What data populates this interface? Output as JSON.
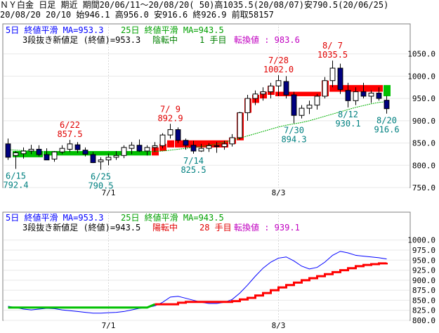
{
  "header": {
    "line1": "ＮＹ白金 日足 期近 期間20/06/11～20/08/20( 50)高1035.5(20/08/07)安790.5(20/06/25)",
    "line2": "20/08/20 20/10 始946.1 高956.0 安916.6 終926.9 前取58157"
  },
  "upper": {
    "legend_ma5": "5日 終値平滑 MA=953.3",
    "legend_ma25": "25日 終値平滑 MA=943.5",
    "legend_kagi": "3段抜き新値足 (終値)=953.3",
    "legend_state": "陰転中",
    "legend_count": "1 手目",
    "legend_switch": "転換値 : 983.6",
    "yticks": [
      "1050.0",
      "1000.0",
      "950.0",
      "900.0",
      "850.0",
      "800.0",
      "750.0"
    ],
    "xticks": [
      "7/1",
      "8/3"
    ],
    "annotations": [
      {
        "date": "6/22",
        "value": "857.5",
        "color": "#e00000"
      },
      {
        "date": "7/ 9",
        "value": "892.9",
        "color": "#e00000"
      },
      {
        "date": "7/28",
        "value": "1002.0",
        "color": "#e00000"
      },
      {
        "date": "8/ 7",
        "value": "1035.5",
        "color": "#e00000"
      },
      {
        "date": "6/15",
        "value": "792.4",
        "color": "#008080"
      },
      {
        "date": "6/25",
        "value": "790.5",
        "color": "#008080"
      },
      {
        "date": "7/14",
        "value": "825.5",
        "color": "#008080"
      },
      {
        "date": "7/30",
        "value": "894.3",
        "color": "#008080"
      },
      {
        "date": "8/12",
        "value": "930.1",
        "color": "#008080"
      },
      {
        "date": "8/20",
        "value": "916.6",
        "color": "#008080"
      }
    ]
  },
  "lower": {
    "legend_ma5": "5日 終値平滑 MA=953.3",
    "legend_ma25": "25日 終値平滑 MA=943.5",
    "legend_kagi": "3段抜き新値足 (終値)=943.5",
    "legend_state": "陽転中",
    "legend_count": "28 手目",
    "legend_switch": "転換値 : 939.1",
    "yticks": [
      "1000.0",
      "975.0",
      "950.0",
      "925.0",
      "900.0",
      "875.0",
      "850.0",
      "825.0",
      "800.0"
    ],
    "xticks": [
      "7/1",
      "8/3"
    ]
  },
  "colors": {
    "up_candle": "#000080",
    "red_block": "#ff0000",
    "green_block": "#00c000",
    "ma5": "#0000ff",
    "ma25": "#00b000",
    "annot_high": "#e00000",
    "annot_low": "#008080"
  },
  "chart_data": [
    {
      "type": "candlestick",
      "title": "ＮＹ白金 日足",
      "ylim": [
        750,
        1070
      ],
      "candles": [
        {
          "o": 848,
          "h": 860,
          "l": 812,
          "c": 818
        },
        {
          "o": 822,
          "h": 832,
          "l": 792,
          "c": 828
        },
        {
          "o": 826,
          "h": 840,
          "l": 815,
          "c": 832
        },
        {
          "o": 832,
          "h": 846,
          "l": 825,
          "c": 836
        },
        {
          "o": 836,
          "h": 845,
          "l": 820,
          "c": 824
        },
        {
          "o": 824,
          "h": 838,
          "l": 812,
          "c": 812
        },
        {
          "o": 814,
          "h": 832,
          "l": 808,
          "c": 830
        },
        {
          "o": 830,
          "h": 845,
          "l": 825,
          "c": 838
        },
        {
          "o": 836,
          "h": 857,
          "l": 830,
          "c": 848
        },
        {
          "o": 846,
          "h": 852,
          "l": 828,
          "c": 835
        },
        {
          "o": 834,
          "h": 840,
          "l": 820,
          "c": 825
        },
        {
          "o": 824,
          "h": 830,
          "l": 805,
          "c": 806
        },
        {
          "o": 808,
          "h": 818,
          "l": 790,
          "c": 812
        },
        {
          "o": 812,
          "h": 826,
          "l": 800,
          "c": 818
        },
        {
          "o": 818,
          "h": 832,
          "l": 812,
          "c": 822
        },
        {
          "o": 822,
          "h": 845,
          "l": 816,
          "c": 840
        },
        {
          "o": 838,
          "h": 852,
          "l": 825,
          "c": 845
        },
        {
          "o": 845,
          "h": 858,
          "l": 830,
          "c": 832
        },
        {
          "o": 832,
          "h": 845,
          "l": 822,
          "c": 840
        },
        {
          "o": 840,
          "h": 852,
          "l": 830,
          "c": 844
        },
        {
          "o": 844,
          "h": 872,
          "l": 838,
          "c": 868
        },
        {
          "o": 868,
          "h": 893,
          "l": 860,
          "c": 880
        },
        {
          "o": 880,
          "h": 885,
          "l": 850,
          "c": 856
        },
        {
          "o": 856,
          "h": 860,
          "l": 835,
          "c": 845
        },
        {
          "o": 845,
          "h": 855,
          "l": 826,
          "c": 832
        },
        {
          "o": 832,
          "h": 848,
          "l": 830,
          "c": 838
        },
        {
          "o": 838,
          "h": 850,
          "l": 830,
          "c": 844
        },
        {
          "o": 844,
          "h": 852,
          "l": 828,
          "c": 842
        },
        {
          "o": 842,
          "h": 855,
          "l": 835,
          "c": 848
        },
        {
          "o": 848,
          "h": 870,
          "l": 842,
          "c": 862
        },
        {
          "o": 862,
          "h": 920,
          "l": 858,
          "c": 918
        },
        {
          "o": 918,
          "h": 958,
          "l": 900,
          "c": 950
        },
        {
          "o": 950,
          "h": 968,
          "l": 935,
          "c": 960
        },
        {
          "o": 960,
          "h": 975,
          "l": 945,
          "c": 965
        },
        {
          "o": 965,
          "h": 985,
          "l": 950,
          "c": 978
        },
        {
          "o": 978,
          "h": 1002,
          "l": 955,
          "c": 990
        },
        {
          "o": 988,
          "h": 1000,
          "l": 950,
          "c": 958
        },
        {
          "o": 958,
          "h": 965,
          "l": 894,
          "c": 912
        },
        {
          "o": 912,
          "h": 935,
          "l": 905,
          "c": 928
        },
        {
          "o": 928,
          "h": 945,
          "l": 915,
          "c": 935
        },
        {
          "o": 935,
          "h": 960,
          "l": 925,
          "c": 955
        },
        {
          "o": 955,
          "h": 998,
          "l": 950,
          "c": 990
        },
        {
          "o": 990,
          "h": 1035,
          "l": 975,
          "c": 1018
        },
        {
          "o": 1018,
          "h": 1028,
          "l": 960,
          "c": 970
        },
        {
          "o": 968,
          "h": 985,
          "l": 930,
          "c": 945
        },
        {
          "o": 945,
          "h": 975,
          "l": 935,
          "c": 965
        },
        {
          "o": 965,
          "h": 985,
          "l": 950,
          "c": 955
        },
        {
          "o": 955,
          "h": 968,
          "l": 940,
          "c": 962
        },
        {
          "o": 962,
          "h": 975,
          "l": 945,
          "c": 950
        },
        {
          "o": 946,
          "h": 956,
          "l": 916,
          "c": 927
        }
      ],
      "kagi_blocks": [
        {
          "from": 1,
          "to": 5,
          "low": 818,
          "high": 832,
          "color": "green"
        },
        {
          "from": 5,
          "to": 19,
          "low": 822,
          "high": 832,
          "color": "green"
        },
        {
          "from": 19,
          "to": 20,
          "low": 822,
          "high": 840,
          "color": "red"
        },
        {
          "from": 20,
          "to": 21,
          "low": 832,
          "high": 848,
          "color": "red"
        },
        {
          "from": 21,
          "to": 22,
          "low": 840,
          "high": 856,
          "color": "red"
        },
        {
          "from": 22,
          "to": 29,
          "low": 840,
          "high": 856,
          "color": "red"
        },
        {
          "from": 29,
          "to": 30,
          "low": 848,
          "high": 862,
          "color": "red"
        },
        {
          "from": 30,
          "to": 31,
          "low": 856,
          "high": 918,
          "color": "red"
        },
        {
          "from": 31,
          "to": 32,
          "low": 918,
          "high": 950,
          "color": "red"
        },
        {
          "from": 32,
          "to": 33,
          "low": 940,
          "high": 958,
          "color": "red"
        },
        {
          "from": 33,
          "to": 34,
          "low": 950,
          "high": 965,
          "color": "red"
        },
        {
          "from": 34,
          "to": 35,
          "low": 958,
          "high": 978,
          "color": "red"
        },
        {
          "from": 35,
          "to": 41,
          "low": 955,
          "high": 965,
          "color": "red"
        },
        {
          "from": 41,
          "to": 42,
          "low": 955,
          "high": 990,
          "color": "red"
        },
        {
          "from": 42,
          "to": 49,
          "low": 965,
          "high": 980,
          "color": "red"
        },
        {
          "from": 49,
          "to": 50,
          "low": 955,
          "high": 980,
          "color": "green"
        }
      ],
      "ma25": [
        835,
        834,
        833,
        832,
        831,
        830,
        829,
        829,
        828,
        828,
        828,
        828,
        827,
        827,
        827,
        827,
        828,
        829,
        830,
        831,
        832,
        834,
        836,
        838,
        840,
        842,
        845,
        848,
        852,
        856,
        861,
        866,
        871,
        876,
        881,
        886,
        890,
        893,
        896,
        900,
        905,
        910,
        915,
        920,
        925,
        930,
        934,
        938,
        941,
        943
      ]
    },
    {
      "type": "line",
      "ylim": [
        800,
        1010
      ],
      "series": [
        {
          "name": "5日 終値平滑",
          "values": [
            835,
            832,
            828,
            826,
            828,
            830,
            829,
            826,
            824,
            822,
            820,
            818,
            818,
            819,
            820,
            822,
            826,
            830,
            832,
            836,
            845,
            858,
            860,
            855,
            850,
            845,
            842,
            842,
            845,
            852,
            868,
            888,
            910,
            930,
            945,
            955,
            958,
            948,
            935,
            928,
            932,
            945,
            962,
            972,
            968,
            962,
            960,
            958,
            956,
            953
          ]
        },
        {
          "name": "3段抜き新値足",
          "values": [
            832,
            832,
            832,
            832,
            832,
            832,
            832,
            832,
            832,
            832,
            832,
            832,
            832,
            832,
            832,
            832,
            832,
            832,
            832,
            840,
            840,
            840,
            844,
            846,
            846,
            846,
            846,
            846,
            846,
            848,
            852,
            856,
            862,
            868,
            875,
            882,
            888,
            894,
            900,
            905,
            910,
            915,
            920,
            925,
            930,
            935,
            938,
            940,
            942,
            943.5
          ]
        }
      ]
    }
  ]
}
